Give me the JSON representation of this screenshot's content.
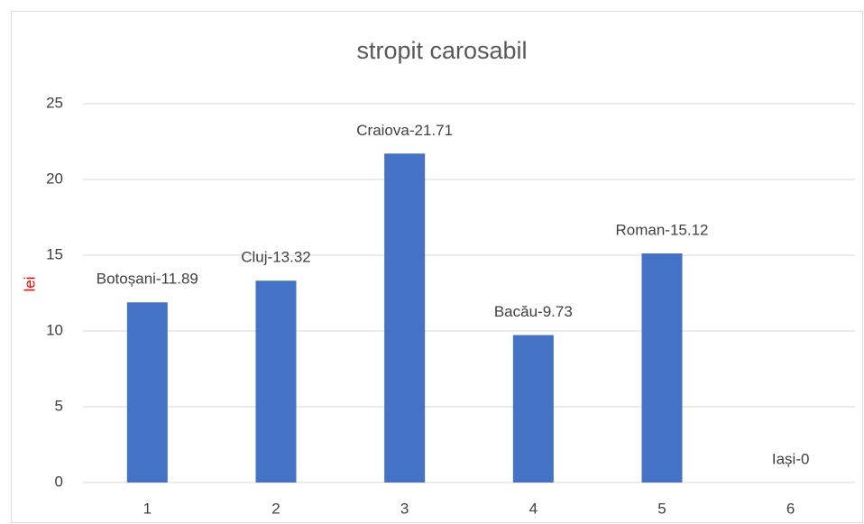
{
  "chart_data": {
    "type": "bar",
    "title": "stropit carosabil",
    "ylabel": "lei",
    "ylabel_color": "#ff0000",
    "categories": [
      "1",
      "2",
      "3",
      "4",
      "5",
      "6"
    ],
    "values": [
      11.89,
      13.32,
      21.71,
      9.73,
      15.12,
      0
    ],
    "value_labels": [
      "Botoșani-11.89",
      "Cluj-13.32",
      "Craiova-21.71",
      "Bacău-9.73",
      "Roman-15.12",
      "Iași-0"
    ],
    "color": "#4472c4",
    "ylim": [
      0,
      25
    ],
    "yticks": [
      0,
      5,
      10,
      15,
      20,
      25
    ],
    "grid": true
  }
}
